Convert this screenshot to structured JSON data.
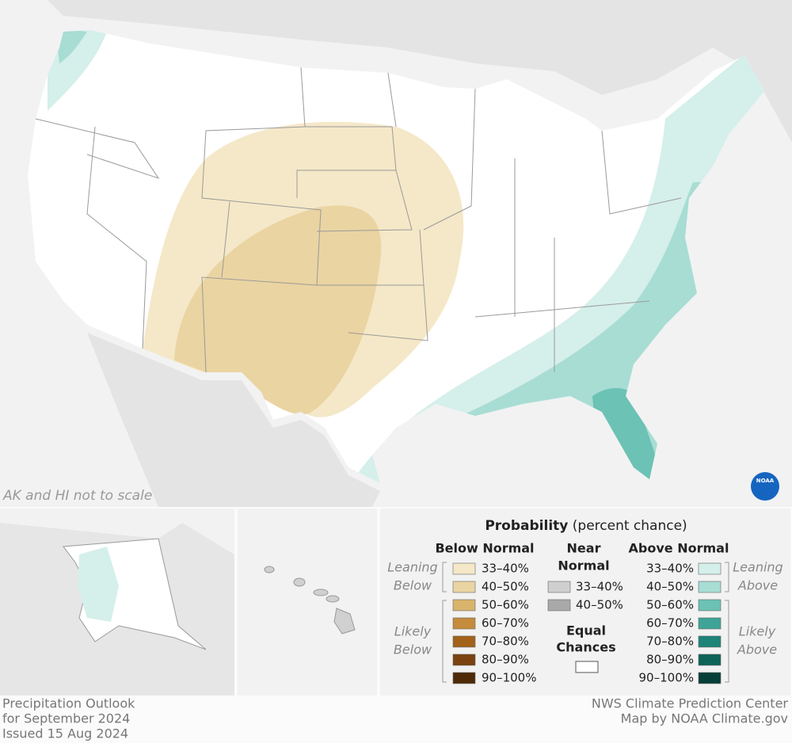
{
  "map_note": "AK and HI not to scale",
  "logo_text": "NOAA",
  "legend": {
    "title": "Probability",
    "title_note": "(percent chance)",
    "below": {
      "heading": "Below Normal",
      "leaning": [
        "Leaning",
        "Below"
      ],
      "likely": [
        "Likely",
        "Below"
      ],
      "items": [
        {
          "label": "33–40%",
          "color": "#f4e8c8"
        },
        {
          "label": "40–50%",
          "color": "#ead4a2"
        },
        {
          "label": "50–60%",
          "color": "#d9b46b"
        },
        {
          "label": "60–70%",
          "color": "#c48c3c"
        },
        {
          "label": "70–80%",
          "color": "#a2621c"
        },
        {
          "label": "80–90%",
          "color": "#7a4310"
        },
        {
          "label": "90–100%",
          "color": "#4e2a08"
        }
      ]
    },
    "near": {
      "heading": [
        "Near",
        "Normal"
      ],
      "items": [
        {
          "label": "33–40%",
          "color": "#cfcfcf"
        },
        {
          "label": "40–50%",
          "color": "#a9a9a9"
        }
      ]
    },
    "equal": {
      "heading": [
        "Equal",
        "Chances"
      ],
      "color": "#ffffff"
    },
    "above": {
      "heading": "Above Normal",
      "leaning": [
        "Leaning",
        "Above"
      ],
      "likely": [
        "Likely",
        "Above"
      ],
      "items": [
        {
          "label": "33–40%",
          "color": "#d5efea"
        },
        {
          "label": "40–50%",
          "color": "#a8ddd4"
        },
        {
          "label": "50–60%",
          "color": "#6cc2b4"
        },
        {
          "label": "60–70%",
          "color": "#3ea497"
        },
        {
          "label": "70–80%",
          "color": "#1e8478"
        },
        {
          "label": "80–90%",
          "color": "#0e6358"
        },
        {
          "label": "90–100%",
          "color": "#063f37"
        }
      ]
    }
  },
  "footer": {
    "left": [
      "Precipitation Outlook",
      "for September 2024",
      "Issued 15 Aug 2024"
    ],
    "right": [
      "NWS Climate Prediction Center",
      "Map by NOAA Climate.gov"
    ]
  }
}
